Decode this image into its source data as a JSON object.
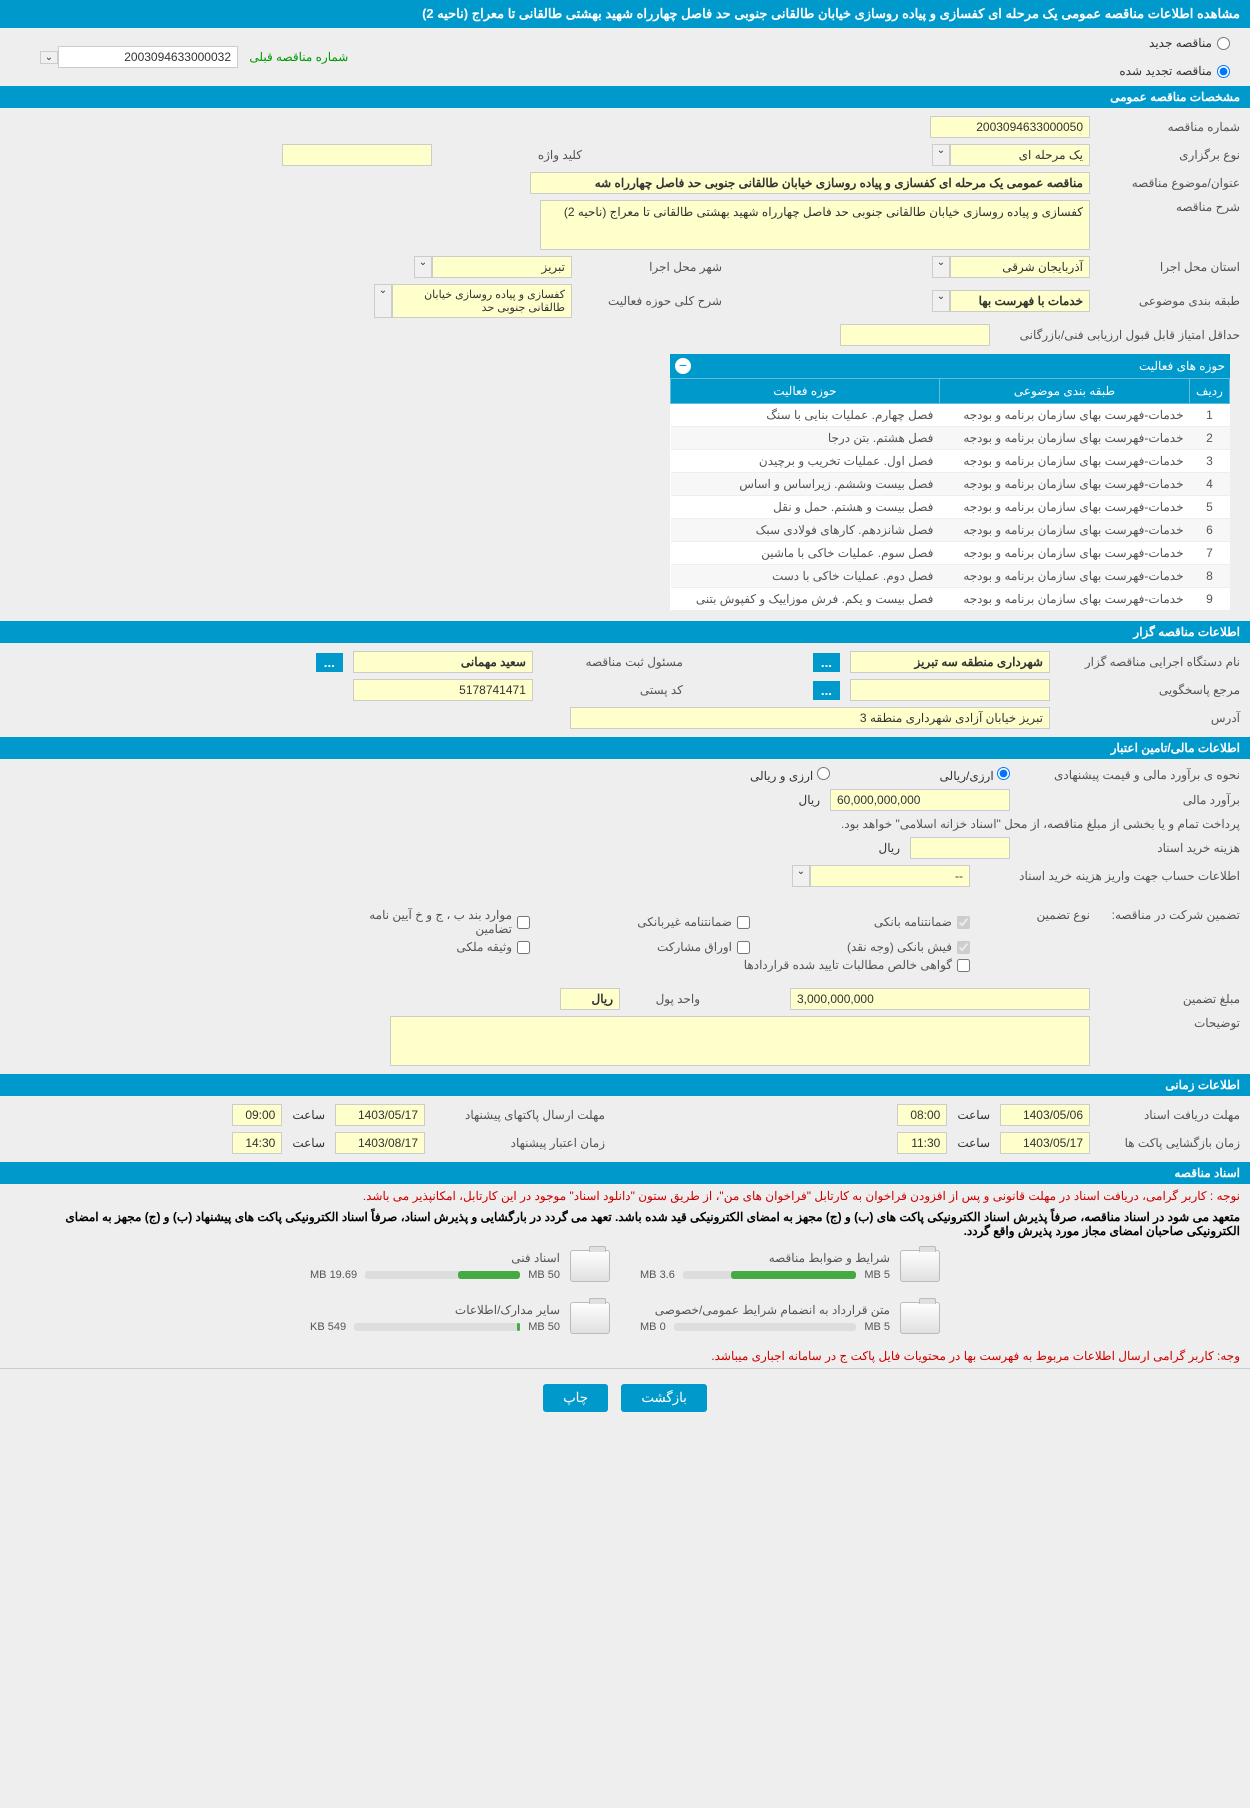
{
  "page_title": "مشاهده اطلاعات مناقصه عمومی یک مرحله ای کفسازی و پیاده روسازی خیابان طالقانی جنوبی حد فاصل چهارراه شهید بهشتی طالقانی تا معراج (ناحیه 2)",
  "radio_options": {
    "new": "مناقصه جدید",
    "renewed": "مناقصه تجدید شده",
    "prev_label": "شماره مناقصه قبلی",
    "prev_number": "2003094633000032"
  },
  "sections": {
    "general": "مشخصات مناقصه عمومی",
    "organizer": "اطلاعات مناقصه گزار",
    "financial": "اطلاعات مالی/تامین اعتبار",
    "time": "اطلاعات زمانی",
    "docs": "اسناد مناقصه"
  },
  "general": {
    "tender_no_label": "شماره مناقصه",
    "tender_no": "2003094633000050",
    "type_label": "نوع برگزاری",
    "type": "یک مرحله ای",
    "keyword_label": "کلید واژه",
    "keyword": "",
    "subject_label": "عنوان/موضوع مناقصه",
    "subject": "مناقصه عمومی یک مرحله ای کفسازی و پیاده روسازی خیابان طالقانی جنوبی حد فاصل چهارراه شه",
    "desc_label": "شرح مناقصه",
    "desc": "کفسازی و پیاده روسازی خیابان طالقانی جنوبی حد فاصل چهارراه شهید بهشتی طالقانی تا معراج (ناحیه 2)",
    "province_label": "استان محل اجرا",
    "province": "آذربایجان شرقی",
    "city_label": "شهر محل اجرا",
    "city": "تبریز",
    "category_label": "طبقه بندی موضوعی",
    "category": "خدمات با فهرست بها",
    "scope_label": "شرح کلی حوزه فعالیت",
    "scope": "کفسازی و پیاده روسازی خیابان طالقانی جنوبی حد",
    "min_score_label": "حداقل امتیاز قابل قبول ارزیابی فنی/بازرگانی",
    "min_score": ""
  },
  "activity_table": {
    "title": "حوزه های فعالیت",
    "headers": {
      "row": "ردیف",
      "category": "طبقه بندی موضوعی",
      "scope": "حوزه فعالیت"
    },
    "rows": [
      {
        "n": "1",
        "cat": "خدمات-فهرست بهای سازمان برنامه و بودجه",
        "scope": "فصل چهارم. عملیات بنایی با سنگ"
      },
      {
        "n": "2",
        "cat": "خدمات-فهرست بهای سازمان برنامه و بودجه",
        "scope": "فصل هشتم. بتن درجا"
      },
      {
        "n": "3",
        "cat": "خدمات-فهرست بهای سازمان برنامه و بودجه",
        "scope": "فصل اول. عملیات تخریب و برچیدن"
      },
      {
        "n": "4",
        "cat": "خدمات-فهرست بهای سازمان برنامه و بودجه",
        "scope": "فصل بیست وششم. زیراساس و اساس"
      },
      {
        "n": "5",
        "cat": "خدمات-فهرست بهای سازمان برنامه و بودجه",
        "scope": "فصل بیست و هشتم. حمل و نقل"
      },
      {
        "n": "6",
        "cat": "خدمات-فهرست بهای سازمان برنامه و بودجه",
        "scope": "فصل شانزدهم. کارهای فولادی سبک"
      },
      {
        "n": "7",
        "cat": "خدمات-فهرست بهای سازمان برنامه و بودجه",
        "scope": "فصل سوم. عملیات خاکی با ماشین"
      },
      {
        "n": "8",
        "cat": "خدمات-فهرست بهای سازمان برنامه و بودجه",
        "scope": "فصل دوم. عملیات خاکی با دست"
      },
      {
        "n": "9",
        "cat": "خدمات-فهرست بهای سازمان برنامه و بودجه",
        "scope": "فصل بیست و یکم. فرش موزاییک و کفپوش بتنی"
      }
    ]
  },
  "organizer": {
    "org_label": "نام دستگاه اجرایی مناقصه گزار",
    "org": "شهرداری منطقه سه تبریز",
    "registrar_label": "مسئول ثبت مناقصه",
    "registrar": "سعید مهمانی",
    "responder_label": "مرجع پاسخگویی",
    "postal_label": "کد پستی",
    "postal": "5178741471",
    "address_label": "آدرس",
    "address": "تبریز خیابان آزادی شهرداری منطقه 3"
  },
  "financial": {
    "estimate_method_label": "نحوه ی برآورد مالی و قیمت پیشنهادی",
    "opt_rial": "ارزی/ریالی",
    "opt_both": "ارزی و ریالی",
    "estimate_label": "برآورد مالی",
    "estimate": "60,000,000,000",
    "unit_rial": "ریال",
    "payment_note": "پرداخت تمام و یا بخشی از مبلغ مناقصه، از محل \"اسناد خزانه اسلامی\" خواهد بود.",
    "doc_cost_label": "هزینه خرید اسناد",
    "doc_cost": "",
    "account_label": "اطلاعات حساب جهت واریز هزینه خرید اسناد",
    "account": "--",
    "guarantee_label": "تضمین شرکت در مناقصه:",
    "guarantee_type_label": "نوع تضمین",
    "chk_bank": "ضمانتنامه بانکی",
    "chk_nonbank": "ضمانتنامه غیربانکی",
    "chk_items": "موارد بند ب ، ج و خ آیین نامه تضامین",
    "chk_cash": "فیش بانکی (وجه نقد)",
    "chk_securities": "اوراق مشارکت",
    "chk_property": "وثیقه ملکی",
    "chk_receivables": "گواهی خالص مطالبات تایید شده قراردادها",
    "amount_label": "مبلغ تضمین",
    "amount": "3,000,000,000",
    "unit_label": "واحد پول",
    "unit": "ریال",
    "notes_label": "توضیحات",
    "notes": ""
  },
  "time": {
    "receive_label": "مهلت دریافت اسناد",
    "receive_date": "1403/05/06",
    "receive_time": "08:00",
    "send_label": "مهلت ارسال پاکتهای پیشنهاد",
    "send_date": "1403/05/17",
    "send_time": "09:00",
    "open_label": "زمان بازگشایی پاکت ها",
    "open_date": "1403/05/17",
    "open_time": "11:30",
    "credit_label": "زمان اعتبار پیشنهاد",
    "credit_date": "1403/08/17",
    "credit_time": "14:30",
    "hour_label": "ساعت"
  },
  "notices": {
    "n1": "نوجه : کاربر گرامی، دریافت اسناد در مهلت قانونی و پس از افزودن فراخوان به کارتابل \"فراخوان های من\"، از طریق ستون \"دانلود اسناد\" موجود در این کارتابل، امکانپذیر می باشد.",
    "n2": "متعهد می شود در اسناد مناقصه، صرفاً پذیرش اسناد الکترونیکی پاکت های (ب) و (ج) مجهز به امضای الکترونیکی قید شده باشد. تعهد می گردد در بارگشایی و پذیرش اسناد، صرفاً اسناد الکترونیکی پاکت های پیشنهاد (ب) و (ج) مجهز به امضای الکترونیکی صاحبان امضای مجاز مورد پذیرش واقع گردد.",
    "n3": "وجه: کاربر گرامی ارسال اطلاعات مربوط به فهرست بها در محتویات فایل پاکت ج در سامانه اجباری میباشد."
  },
  "docs": [
    {
      "title": "شرایط و ضوابط مناقصه",
      "used": "3.6 MB",
      "total": "5 MB",
      "pct": 72
    },
    {
      "title": "اسناد فنی",
      "used": "19.69 MB",
      "total": "50 MB",
      "pct": 40
    },
    {
      "title": "متن قرارداد به انضمام شرایط عمومی/خصوصی",
      "used": "0 MB",
      "total": "5 MB",
      "pct": 0
    },
    {
      "title": "سایر مدارک/اطلاعات",
      "used": "549 KB",
      "total": "50 MB",
      "pct": 2
    }
  ],
  "buttons": {
    "back": "بازگشت",
    "print": "چاپ"
  },
  "colors": {
    "primary": "#0099cc",
    "field_bg": "#ffffcc",
    "page_bg": "#eeeeee",
    "red": "#cc0000",
    "green_bar": "#44aa44"
  }
}
